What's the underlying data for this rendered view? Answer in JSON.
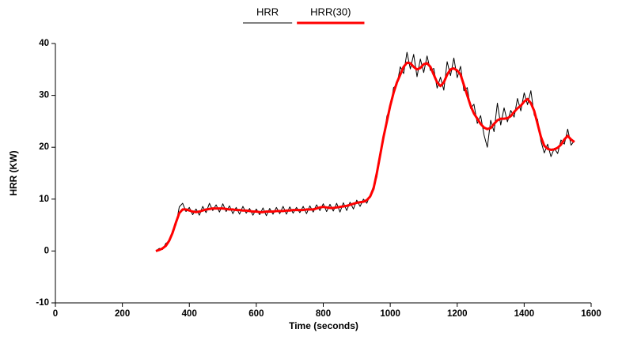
{
  "chart_data": {
    "type": "line",
    "x_label": "Time (seconds)",
    "y_label": "HRR (KW)",
    "xlim": [
      0,
      1600
    ],
    "xticks": [
      0,
      200,
      400,
      600,
      800,
      1000,
      1200,
      1400,
      1600
    ],
    "ylim": [
      -10,
      40
    ],
    "yticks": [
      -10,
      0,
      10,
      20,
      30,
      40
    ],
    "x": [
      300,
      310,
      320,
      330,
      340,
      350,
      360,
      370,
      380,
      390,
      400,
      410,
      420,
      430,
      440,
      450,
      460,
      470,
      480,
      490,
      500,
      510,
      520,
      530,
      540,
      550,
      560,
      570,
      580,
      590,
      600,
      610,
      620,
      630,
      640,
      650,
      660,
      670,
      680,
      690,
      700,
      710,
      720,
      730,
      740,
      750,
      760,
      770,
      780,
      790,
      800,
      810,
      820,
      830,
      840,
      850,
      860,
      870,
      880,
      890,
      900,
      910,
      920,
      930,
      940,
      950,
      960,
      970,
      980,
      990,
      1000,
      1010,
      1020,
      1030,
      1040,
      1050,
      1060,
      1070,
      1080,
      1090,
      1100,
      1110,
      1120,
      1130,
      1140,
      1150,
      1160,
      1170,
      1180,
      1190,
      1200,
      1210,
      1220,
      1230,
      1240,
      1250,
      1260,
      1270,
      1280,
      1290,
      1300,
      1310,
      1320,
      1330,
      1340,
      1350,
      1360,
      1370,
      1380,
      1390,
      1400,
      1410,
      1420,
      1430,
      1440,
      1450,
      1460,
      1470,
      1480,
      1490,
      1500,
      1510,
      1520,
      1530,
      1540,
      1550
    ],
    "series": [
      {
        "name": "HRR",
        "color": "#000000",
        "width": 1,
        "values": [
          0,
          0.5,
          0.3,
          1.5,
          1.8,
          4,
          5,
          8.5,
          9.2,
          7.6,
          8.4,
          7,
          8.1,
          6.9,
          8.6,
          7.4,
          9.2,
          7.8,
          8.9,
          7.5,
          9.1,
          7.6,
          8.7,
          7.2,
          8.4,
          7.1,
          8.6,
          7.3,
          8.2,
          6.9,
          8.1,
          7,
          8.3,
          6.8,
          8.2,
          7.1,
          8.4,
          7.2,
          8.6,
          7.1,
          8.5,
          7.3,
          8.4,
          7.4,
          8.6,
          7.2,
          8.7,
          7.5,
          8.9,
          7.8,
          9.1,
          7.6,
          9,
          7.7,
          9.2,
          7.5,
          9.3,
          7.8,
          9.4,
          8.1,
          9.8,
          8.6,
          10,
          9.2,
          10.8,
          12.5,
          14.2,
          19,
          21.5,
          26,
          27.5,
          31.5,
          32,
          35.5,
          34.2,
          38.3,
          35.1,
          37.9,
          33.6,
          37,
          34.4,
          37.6,
          34.8,
          35.2,
          31.4,
          33.5,
          31,
          36.5,
          33.8,
          37.2,
          33.4,
          35.6,
          30.9,
          31.5,
          27.5,
          28.3,
          24.6,
          26.1,
          22.4,
          20,
          25.2,
          23,
          28.5,
          24.3,
          27.6,
          24.9,
          27.1,
          25.8,
          29.4,
          27,
          30.5,
          28.2,
          30.9,
          26.2,
          25.4,
          21.2,
          18.9,
          20.6,
          18.2,
          19.8,
          18.8,
          21.4,
          20.6,
          23.5,
          20.4,
          21.3
        ]
      },
      {
        "name": "HRR(30)",
        "color": "#ff0000",
        "width": 3,
        "values": [
          0,
          0.2,
          0.5,
          1,
          2,
          3.5,
          5.5,
          7.3,
          8,
          8,
          7.8,
          7.6,
          7.5,
          7.6,
          7.8,
          8,
          8.1,
          8.2,
          8.2,
          8.2,
          8.2,
          8.1,
          8,
          8,
          7.9,
          7.9,
          7.8,
          7.8,
          7.7,
          7.6,
          7.6,
          7.5,
          7.5,
          7.6,
          7.6,
          7.6,
          7.7,
          7.7,
          7.7,
          7.8,
          7.8,
          7.9,
          7.9,
          7.9,
          7.9,
          8,
          8,
          8,
          8.2,
          8.4,
          8.5,
          8.4,
          8.3,
          8.3,
          8.4,
          8.5,
          8.6,
          8.7,
          8.9,
          9.1,
          9.3,
          9.4,
          9.5,
          9.8,
          10.5,
          12,
          15,
          18.5,
          22,
          25,
          28,
          30.5,
          32.5,
          34,
          35.5,
          36.3,
          36.2,
          35.5,
          35,
          35.3,
          36,
          36.2,
          35.5,
          34,
          32.5,
          31.8,
          32.5,
          34,
          35,
          35.2,
          34.8,
          34,
          32,
          30,
          28,
          26.5,
          25.5,
          24.5,
          23.8,
          23.5,
          23.7,
          24.5,
          25.2,
          25.5,
          25.5,
          25.6,
          26,
          26.8,
          27.5,
          28,
          28.8,
          29.3,
          28.5,
          27,
          24.5,
          22,
          20.3,
          19.7,
          19.5,
          19.6,
          19.9,
          20.5,
          21.5,
          22.2,
          21.5,
          21
        ]
      }
    ]
  }
}
